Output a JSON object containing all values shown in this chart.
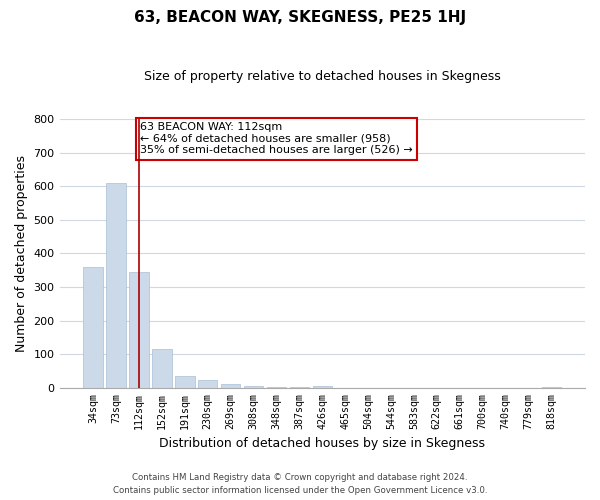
{
  "title": "63, BEACON WAY, SKEGNESS, PE25 1HJ",
  "subtitle": "Size of property relative to detached houses in Skegness",
  "xlabel": "Distribution of detached houses by size in Skegness",
  "ylabel": "Number of detached properties",
  "bar_labels": [
    "34sqm",
    "73sqm",
    "112sqm",
    "152sqm",
    "191sqm",
    "230sqm",
    "269sqm",
    "308sqm",
    "348sqm",
    "387sqm",
    "426sqm",
    "465sqm",
    "504sqm",
    "544sqm",
    "583sqm",
    "622sqm",
    "661sqm",
    "700sqm",
    "740sqm",
    "779sqm",
    "818sqm"
  ],
  "bar_values": [
    360,
    610,
    345,
    115,
    35,
    22,
    12,
    5,
    2,
    2,
    5,
    0,
    0,
    0,
    0,
    0,
    0,
    0,
    0,
    0,
    3
  ],
  "bar_color": "#ccd9e8",
  "bar_edgecolor": "#a8bfd4",
  "vline_x": 2,
  "vline_color": "#aa0000",
  "ylim": [
    0,
    800
  ],
  "yticks": [
    0,
    100,
    200,
    300,
    400,
    500,
    600,
    700,
    800
  ],
  "annotation_line1": "63 BEACON WAY: 112sqm",
  "annotation_line2": "← 64% of detached houses are smaller (958)",
  "annotation_line3": "35% of semi-detached houses are larger (526) →",
  "footer_line1": "Contains HM Land Registry data © Crown copyright and database right 2024.",
  "footer_line2": "Contains public sector information licensed under the Open Government Licence v3.0.",
  "grid_color": "#d0d8e4",
  "background_color": "#ffffff"
}
